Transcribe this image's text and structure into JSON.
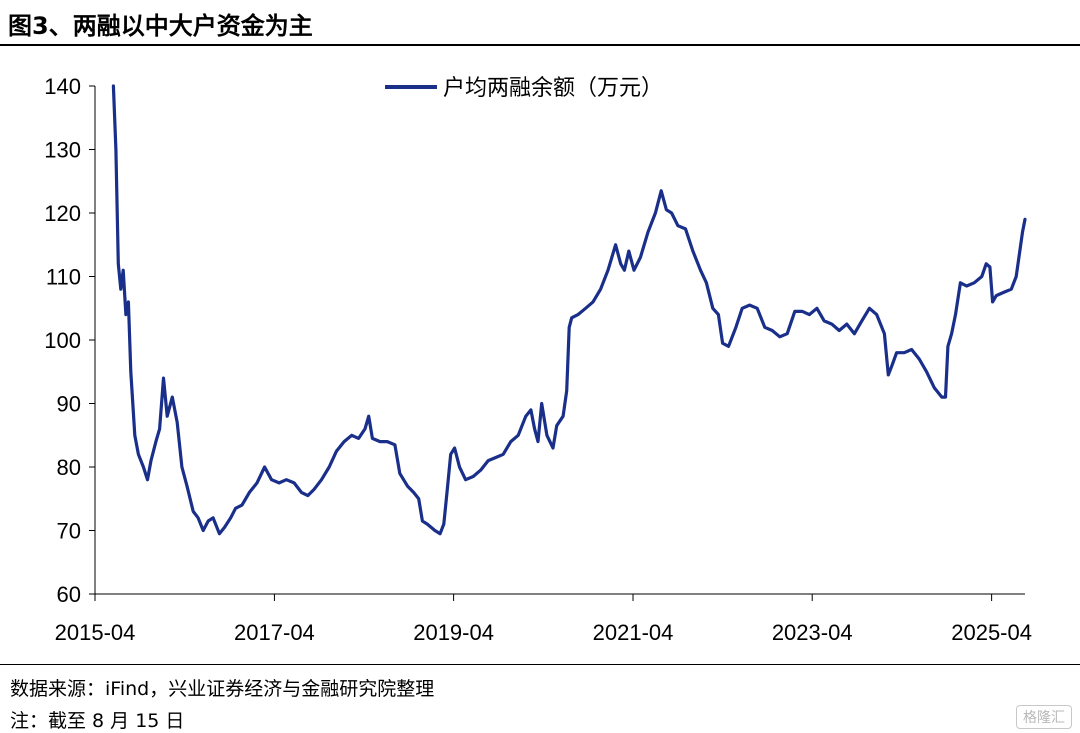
{
  "header": {
    "title": "图3、两融以中大户资金为主"
  },
  "footer": {
    "source": "数据来源：iFind，兴业证券经济与金融研究院整理",
    "note": "注：截至 8 月 15 日",
    "watermark": "格隆汇"
  },
  "chart_data": {
    "type": "line",
    "title": "图3、两融以中大户资金为主",
    "xlabel": "",
    "ylabel": "",
    "ylim": [
      60,
      140
    ],
    "yticks": [
      60,
      70,
      80,
      90,
      100,
      110,
      120,
      130,
      140
    ],
    "xticks": [
      "2015-04",
      "2017-04",
      "2019-04",
      "2021-04",
      "2023-04",
      "2025-04"
    ],
    "xlim": [
      "2015-04-01",
      "2025-08-15"
    ],
    "grid": false,
    "legend_position": "top-center",
    "line_color": "#1a2f8a",
    "series": [
      {
        "name": "户均两融余额（万元）",
        "points": [
          [
            "2015-06-15",
            140
          ],
          [
            "2015-06-25",
            130
          ],
          [
            "2015-07-05",
            112
          ],
          [
            "2015-07-15",
            108
          ],
          [
            "2015-07-25",
            111
          ],
          [
            "2015-08-05",
            104
          ],
          [
            "2015-08-15",
            106
          ],
          [
            "2015-08-25",
            95
          ],
          [
            "2015-09-10",
            85
          ],
          [
            "2015-09-25",
            82
          ],
          [
            "2015-10-15",
            80
          ],
          [
            "2015-11-01",
            78
          ],
          [
            "2015-11-15",
            81
          ],
          [
            "2015-12-05",
            84
          ],
          [
            "2015-12-20",
            86
          ],
          [
            "2016-01-05",
            94
          ],
          [
            "2016-01-20",
            88
          ],
          [
            "2016-02-10",
            91
          ],
          [
            "2016-03-01",
            87
          ],
          [
            "2016-03-20",
            80
          ],
          [
            "2016-04-10",
            77
          ],
          [
            "2016-05-05",
            73
          ],
          [
            "2016-05-25",
            72
          ],
          [
            "2016-06-15",
            70
          ],
          [
            "2016-07-05",
            71.5
          ],
          [
            "2016-07-25",
            72
          ],
          [
            "2016-08-20",
            69.5
          ],
          [
            "2016-09-10",
            70.5
          ],
          [
            "2016-10-05",
            72
          ],
          [
            "2016-10-25",
            73.5
          ],
          [
            "2016-11-20",
            74
          ],
          [
            "2016-12-20",
            76
          ],
          [
            "2017-01-20",
            77.5
          ],
          [
            "2017-02-20",
            80
          ],
          [
            "2017-03-20",
            78
          ],
          [
            "2017-04-20",
            77.5
          ],
          [
            "2017-05-20",
            78
          ],
          [
            "2017-06-20",
            77.5
          ],
          [
            "2017-07-20",
            76
          ],
          [
            "2017-08-15",
            75.5
          ],
          [
            "2017-09-10",
            76.5
          ],
          [
            "2017-10-10",
            78
          ],
          [
            "2017-11-10",
            80
          ],
          [
            "2017-12-10",
            82.5
          ],
          [
            "2018-01-10",
            84
          ],
          [
            "2018-02-10",
            85
          ],
          [
            "2018-03-10",
            84.5
          ],
          [
            "2018-04-05",
            86
          ],
          [
            "2018-04-20",
            88
          ],
          [
            "2018-05-05",
            84.5
          ],
          [
            "2018-06-05",
            84
          ],
          [
            "2018-07-05",
            84
          ],
          [
            "2018-08-05",
            83.5
          ],
          [
            "2018-08-25",
            79
          ],
          [
            "2018-09-25",
            77
          ],
          [
            "2018-10-20",
            76
          ],
          [
            "2018-11-10",
            75
          ],
          [
            "2018-11-25",
            71.5
          ],
          [
            "2018-12-15",
            71
          ],
          [
            "2019-01-15",
            70
          ],
          [
            "2019-02-05",
            69.5
          ],
          [
            "2019-02-20",
            71
          ],
          [
            "2019-03-05",
            76
          ],
          [
            "2019-03-20",
            82
          ],
          [
            "2019-04-05",
            83
          ],
          [
            "2019-04-25",
            80
          ],
          [
            "2019-05-20",
            78
          ],
          [
            "2019-06-20",
            78.5
          ],
          [
            "2019-07-20",
            79.5
          ],
          [
            "2019-08-20",
            81
          ],
          [
            "2019-09-20",
            81.5
          ],
          [
            "2019-10-20",
            82
          ],
          [
            "2019-11-20",
            84
          ],
          [
            "2019-12-20",
            85
          ],
          [
            "2020-01-20",
            88
          ],
          [
            "2020-02-10",
            89
          ],
          [
            "2020-02-25",
            86
          ],
          [
            "2020-03-10",
            84
          ],
          [
            "2020-03-25",
            90
          ],
          [
            "2020-04-15",
            85
          ],
          [
            "2020-05-10",
            83
          ],
          [
            "2020-05-25",
            86.5
          ],
          [
            "2020-06-20",
            88
          ],
          [
            "2020-07-05",
            92
          ],
          [
            "2020-07-15",
            102
          ],
          [
            "2020-07-25",
            103.5
          ],
          [
            "2020-08-20",
            104
          ],
          [
            "2020-09-20",
            105
          ],
          [
            "2020-10-20",
            106
          ],
          [
            "2020-11-20",
            108
          ],
          [
            "2020-12-20",
            111
          ],
          [
            "2021-01-20",
            115
          ],
          [
            "2021-02-10",
            112
          ],
          [
            "2021-02-25",
            111
          ],
          [
            "2021-03-15",
            114
          ],
          [
            "2021-04-05",
            111
          ],
          [
            "2021-05-01",
            113
          ],
          [
            "2021-06-01",
            117
          ],
          [
            "2021-07-01",
            120
          ],
          [
            "2021-07-25",
            123.5
          ],
          [
            "2021-08-15",
            120.5
          ],
          [
            "2021-09-05",
            120
          ],
          [
            "2021-10-01",
            118
          ],
          [
            "2021-11-01",
            117.5
          ],
          [
            "2021-12-01",
            114
          ],
          [
            "2022-01-01",
            111
          ],
          [
            "2022-01-25",
            109
          ],
          [
            "2022-02-20",
            105
          ],
          [
            "2022-03-15",
            104
          ],
          [
            "2022-04-01",
            99.5
          ],
          [
            "2022-04-25",
            99
          ],
          [
            "2022-05-25",
            102
          ],
          [
            "2022-06-20",
            105
          ],
          [
            "2022-07-20",
            105.5
          ],
          [
            "2022-08-20",
            105
          ],
          [
            "2022-09-20",
            102
          ],
          [
            "2022-10-20",
            101.5
          ],
          [
            "2022-11-20",
            100.5
          ],
          [
            "2022-12-20",
            101
          ],
          [
            "2023-01-20",
            104.5
          ],
          [
            "2023-02-20",
            104.5
          ],
          [
            "2023-03-20",
            104
          ],
          [
            "2023-04-20",
            105
          ],
          [
            "2023-05-20",
            103
          ],
          [
            "2023-06-20",
            102.5
          ],
          [
            "2023-07-20",
            101.5
          ],
          [
            "2023-08-20",
            102.5
          ],
          [
            "2023-09-20",
            101
          ],
          [
            "2023-10-20",
            103
          ],
          [
            "2023-11-20",
            105
          ],
          [
            "2023-12-20",
            104
          ],
          [
            "2024-01-20",
            101
          ],
          [
            "2024-02-05",
            94.5
          ],
          [
            "2024-02-20",
            96
          ],
          [
            "2024-03-10",
            98
          ],
          [
            "2024-04-10",
            98
          ],
          [
            "2024-05-10",
            98.5
          ],
          [
            "2024-06-10",
            97
          ],
          [
            "2024-07-10",
            95
          ],
          [
            "2024-08-10",
            92.5
          ],
          [
            "2024-09-10",
            91
          ],
          [
            "2024-09-25",
            91
          ],
          [
            "2024-10-05",
            99
          ],
          [
            "2024-10-20",
            101
          ],
          [
            "2024-11-05",
            104
          ],
          [
            "2024-11-25",
            109
          ],
          [
            "2024-12-20",
            108.5
          ],
          [
            "2025-01-20",
            109
          ],
          [
            "2025-02-20",
            110
          ],
          [
            "2025-03-10",
            112
          ],
          [
            "2025-03-25",
            111.5
          ],
          [
            "2025-04-05",
            106
          ],
          [
            "2025-04-20",
            107
          ],
          [
            "2025-05-20",
            107.5
          ],
          [
            "2025-06-20",
            108
          ],
          [
            "2025-07-10",
            110
          ],
          [
            "2025-07-25",
            114
          ],
          [
            "2025-08-05",
            117
          ],
          [
            "2025-08-15",
            119
          ]
        ]
      }
    ]
  }
}
